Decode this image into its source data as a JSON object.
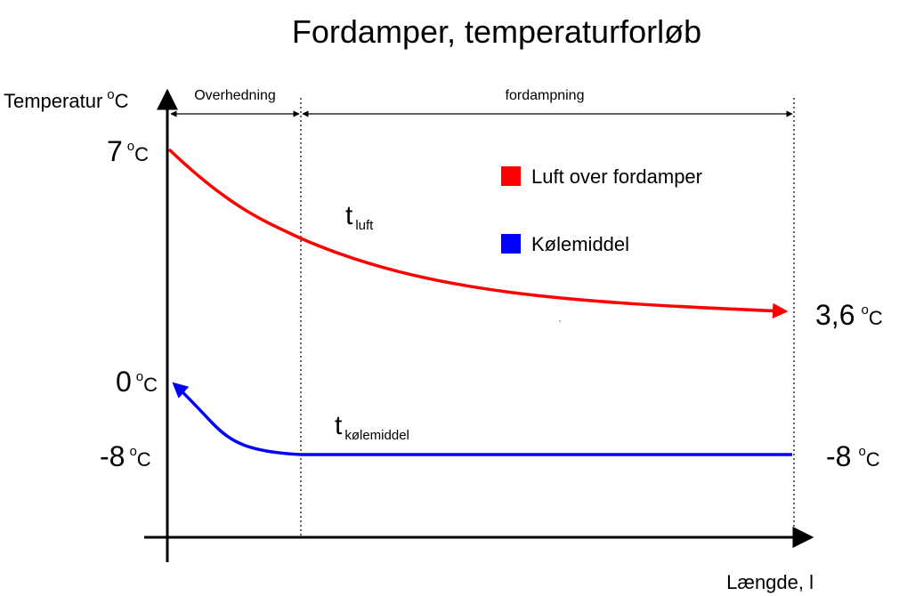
{
  "title": "Fordamper, temperaturforløb",
  "y_axis_label": "Temperatur",
  "x_axis_label": "Længde, l",
  "unit_sup": "o",
  "unit_letter": "C",
  "regions": {
    "superheat": "Overhedning",
    "evaporation": "fordampning"
  },
  "legend": [
    {
      "label": "Luft over fordamper",
      "color": "#ff0000"
    },
    {
      "label": "Kølemiddel",
      "color": "#0000ff"
    }
  ],
  "curve_labels": {
    "air": {
      "main": "t",
      "sub": "luft"
    },
    "refrigerant": {
      "main": "t",
      "sub": "kølemiddel"
    }
  },
  "y_ticks": {
    "seven": "7",
    "zero": "0",
    "minus_eight": "-8"
  },
  "end_values": {
    "air": "3,6",
    "refrigerant": "-8"
  },
  "colors": {
    "air": "#ff0000",
    "refrigerant": "#0000ff",
    "axis": "#000000"
  }
}
